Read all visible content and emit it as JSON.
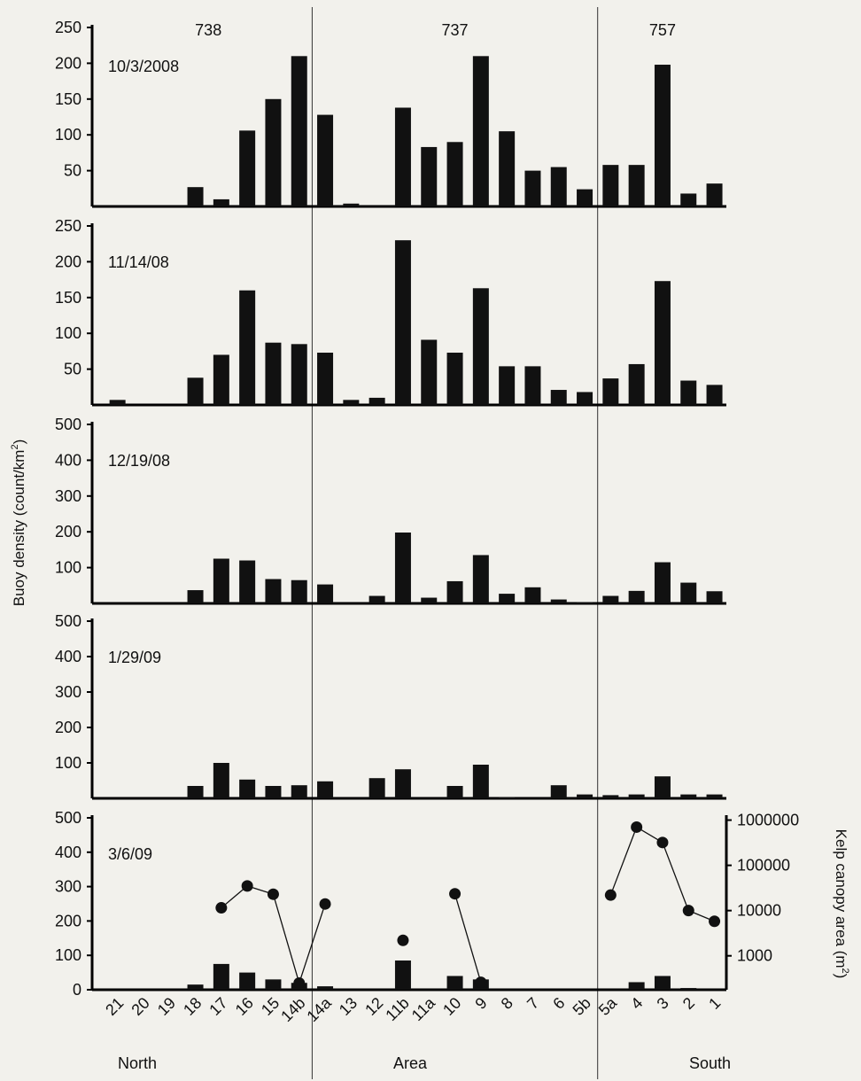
{
  "chart_data": {
    "type": "bar",
    "title": "",
    "ylabel": "Buoy density (count/km²)",
    "ylabel_main": "Buoy density (count/km",
    "ylabel_sup": "2",
    "ylabel_tail": ")",
    "y2label": "Kelp canopy area (m²)",
    "y2label_main": "Kelp canopy area (m",
    "y2label_sup": "2",
    "y2label_tail": ")",
    "xlabel": "Area",
    "x_left_label": "North",
    "x_right_label": "South",
    "categories": [
      "21",
      "20",
      "19",
      "18",
      "17",
      "16",
      "15",
      "14b",
      "14a",
      "13",
      "12",
      "11b",
      "11a",
      "10",
      "9",
      "8",
      "7",
      "6",
      "5b",
      "5a",
      "4",
      "3",
      "2",
      "1"
    ],
    "sections": [
      {
        "label": "738",
        "start": "21",
        "end": "14b"
      },
      {
        "label": "737",
        "start": "14a",
        "end": "5b"
      },
      {
        "label": "757",
        "start": "5a",
        "end": "1"
      }
    ],
    "panels": [
      {
        "date": "10/3/2008",
        "ylim": [
          0,
          250
        ],
        "yticks": [
          50,
          100,
          150,
          200,
          250
        ],
        "values": [
          0,
          0,
          0,
          27,
          10,
          106,
          150,
          210,
          128,
          4,
          0,
          138,
          83,
          90,
          210,
          105,
          50,
          55,
          24,
          58,
          58,
          198,
          18,
          32
        ]
      },
      {
        "date": "11/14/08",
        "ylim": [
          0,
          250
        ],
        "yticks": [
          50,
          100,
          150,
          200,
          250
        ],
        "values": [
          7,
          0,
          0,
          38,
          70,
          160,
          87,
          85,
          73,
          7,
          10,
          230,
          91,
          73,
          163,
          54,
          54,
          21,
          18,
          37,
          57,
          173,
          34,
          28
        ]
      },
      {
        "date": "12/19/08",
        "ylim": [
          0,
          500
        ],
        "yticks": [
          100,
          200,
          300,
          400,
          500
        ],
        "values": [
          0,
          0,
          0,
          37,
          125,
          120,
          68,
          65,
          53,
          0,
          21,
          198,
          16,
          62,
          135,
          27,
          45,
          11,
          3,
          21,
          35,
          115,
          58,
          34
        ]
      },
      {
        "date": "1/29/09",
        "ylim": [
          0,
          500
        ],
        "yticks": [
          100,
          200,
          300,
          400,
          500
        ],
        "values": [
          0,
          0,
          0,
          35,
          100,
          53,
          35,
          37,
          48,
          0,
          57,
          82,
          0,
          35,
          95,
          3,
          0,
          37,
          11,
          9,
          11,
          62,
          11,
          11
        ]
      },
      {
        "date": "3/6/09",
        "ylim": [
          0,
          500
        ],
        "yticks": [
          0,
          100,
          200,
          300,
          400,
          500
        ],
        "values": [
          0,
          0,
          0,
          15,
          75,
          50,
          30,
          20,
          10,
          0,
          0,
          85,
          0,
          40,
          30,
          0,
          0,
          0,
          0,
          0,
          22,
          40,
          5,
          0
        ],
        "kelp_y2_log": true,
        "kelp_y2_ticks": [
          "1000",
          "10000",
          "100000",
          "1000000"
        ],
        "kelp_series": [
          {
            "category": "17",
            "value": 11500
          },
          {
            "category": "16",
            "value": 35000
          },
          {
            "category": "15",
            "value": 23000
          },
          {
            "category": "14b",
            "value": 250
          },
          {
            "category": "14a",
            "value": 14000
          }
        ],
        "kelp_single": [
          {
            "category": "11b",
            "value": 2200
          }
        ],
        "kelp_series_b": [
          {
            "category": "10",
            "value": 23500
          },
          {
            "category": "9",
            "value": 260
          }
        ],
        "kelp_series_c": [
          {
            "category": "5a",
            "value": 22000
          },
          {
            "category": "4",
            "value": 700000
          },
          {
            "category": "3",
            "value": 320000
          },
          {
            "category": "2",
            "value": 10000
          },
          {
            "category": "1",
            "value": 5800
          }
        ]
      }
    ]
  }
}
